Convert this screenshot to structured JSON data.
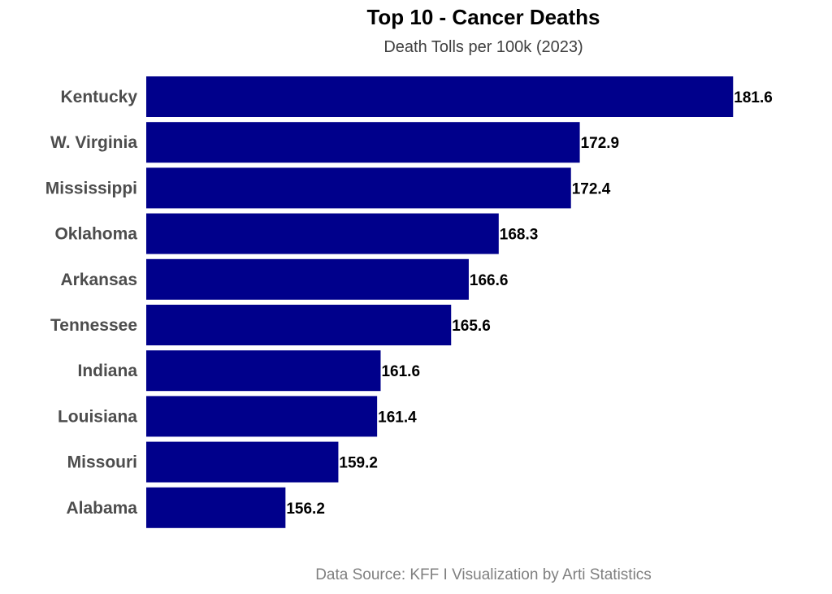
{
  "chart_data": {
    "type": "bar",
    "orientation": "horizontal",
    "title": "Top 10 - Cancer Deaths",
    "subtitle": "Death Tolls per 100k (2023)",
    "caption": "Data Source: KFF I Visualization by Arti Statistics",
    "xlabel": "",
    "ylabel": "",
    "categories": [
      "Kentucky",
      "W. Virginia",
      "Mississippi",
      "Oklahoma",
      "Arkansas",
      "Tennessee",
      "Indiana",
      "Louisiana",
      "Missouri",
      "Alabama"
    ],
    "values": [
      181.6,
      172.9,
      172.4,
      168.3,
      166.6,
      165.6,
      161.6,
      161.4,
      159.2,
      156.2
    ],
    "data_labels": [
      "181.6",
      "172.9",
      "172.4",
      "168.3",
      "166.6",
      "165.6",
      "161.6",
      "161.4",
      "159.2",
      "156.2"
    ],
    "xlim": [
      148.3,
      183
    ],
    "grid": false,
    "legend": "none",
    "bar_color": "#00008B"
  }
}
